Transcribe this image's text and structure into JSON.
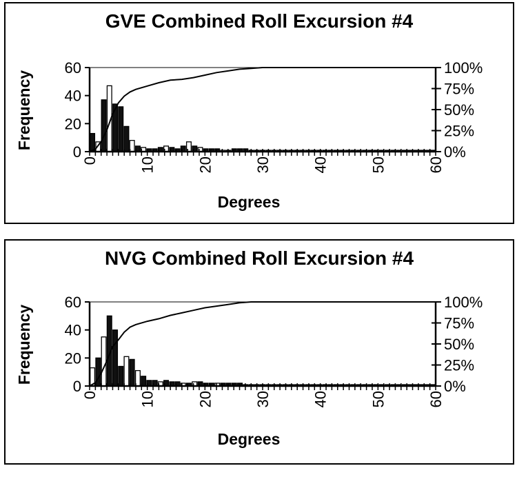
{
  "chart_data": [
    {
      "type": "bar",
      "title": "GVE Combined Roll Excursion #4",
      "xlabel": "Degrees",
      "ylabel": "Frequency",
      "xticks": [
        "0",
        "10",
        "20",
        "30",
        "40",
        "50",
        "60"
      ],
      "yticks": [
        "0",
        "20",
        "40",
        "60"
      ],
      "y2ticks": [
        "0%",
        "25%",
        "50%",
        "75%",
        "100%"
      ],
      "xlim": [
        0,
        60
      ],
      "ylim": [
        0,
        60
      ],
      "y2lim": [
        0,
        100
      ],
      "series": [
        {
          "kind": "bar",
          "values": [
            13,
            7,
            37,
            47,
            34,
            32,
            18,
            8,
            4,
            3,
            2,
            2,
            3,
            4,
            3,
            2,
            4,
            7,
            4,
            3,
            2,
            2,
            2,
            1,
            1,
            2,
            2,
            2,
            1,
            1,
            1,
            1,
            1,
            1,
            1,
            1,
            1,
            1,
            1,
            1,
            1,
            1,
            1,
            1,
            1,
            1,
            1,
            1,
            1,
            1,
            1,
            1,
            1,
            1,
            1,
            1,
            1,
            1,
            1,
            1,
            1
          ]
        },
        {
          "kind": "line",
          "axis": "right",
          "x": [
            0,
            1,
            2,
            3,
            4,
            5,
            6,
            7,
            8,
            10,
            12,
            14,
            16,
            18,
            20,
            22,
            24,
            26,
            28,
            30,
            35,
            40,
            45,
            50,
            55,
            60
          ],
          "values": [
            0,
            3,
            12,
            26,
            45,
            58,
            66,
            71,
            74,
            78,
            82,
            85,
            86,
            88,
            91,
            94,
            96,
            98,
            99,
            100,
            100,
            100,
            100,
            100,
            100,
            100
          ]
        }
      ]
    },
    {
      "type": "bar",
      "title": "NVG Combined Roll Excursion #4",
      "xlabel": "Degrees",
      "ylabel": "Frequency",
      "xticks": [
        "0",
        "10",
        "20",
        "30",
        "40",
        "50",
        "60"
      ],
      "yticks": [
        "0",
        "20",
        "40",
        "60"
      ],
      "y2ticks": [
        "0%",
        "25%",
        "50%",
        "75%",
        "100%"
      ],
      "xlim": [
        0,
        60
      ],
      "ylim": [
        0,
        60
      ],
      "y2lim": [
        0,
        100
      ],
      "series": [
        {
          "kind": "bar",
          "values": [
            13,
            20,
            35,
            50,
            40,
            14,
            21,
            19,
            11,
            7,
            4,
            4,
            3,
            4,
            3,
            3,
            2,
            2,
            3,
            3,
            2,
            2,
            2,
            2,
            2,
            2,
            2,
            1,
            1,
            1,
            1,
            1,
            1,
            1,
            1,
            1,
            1,
            1,
            1,
            1,
            1,
            1,
            1,
            1,
            1,
            1,
            1,
            1,
            1,
            1,
            1,
            1,
            1,
            1,
            1,
            1,
            1,
            1,
            1,
            1,
            1
          ]
        },
        {
          "kind": "line",
          "axis": "right",
          "x": [
            0,
            1,
            2,
            3,
            4,
            5,
            6,
            7,
            8,
            10,
            12,
            14,
            16,
            18,
            20,
            22,
            24,
            26,
            28,
            30,
            35,
            40,
            45,
            50,
            55,
            60
          ],
          "values": [
            0,
            4,
            15,
            30,
            47,
            55,
            64,
            70,
            73,
            77,
            80,
            84,
            87,
            90,
            93,
            95,
            97,
            99,
            100,
            100,
            100,
            100,
            100,
            100,
            100,
            100
          ]
        }
      ]
    }
  ]
}
